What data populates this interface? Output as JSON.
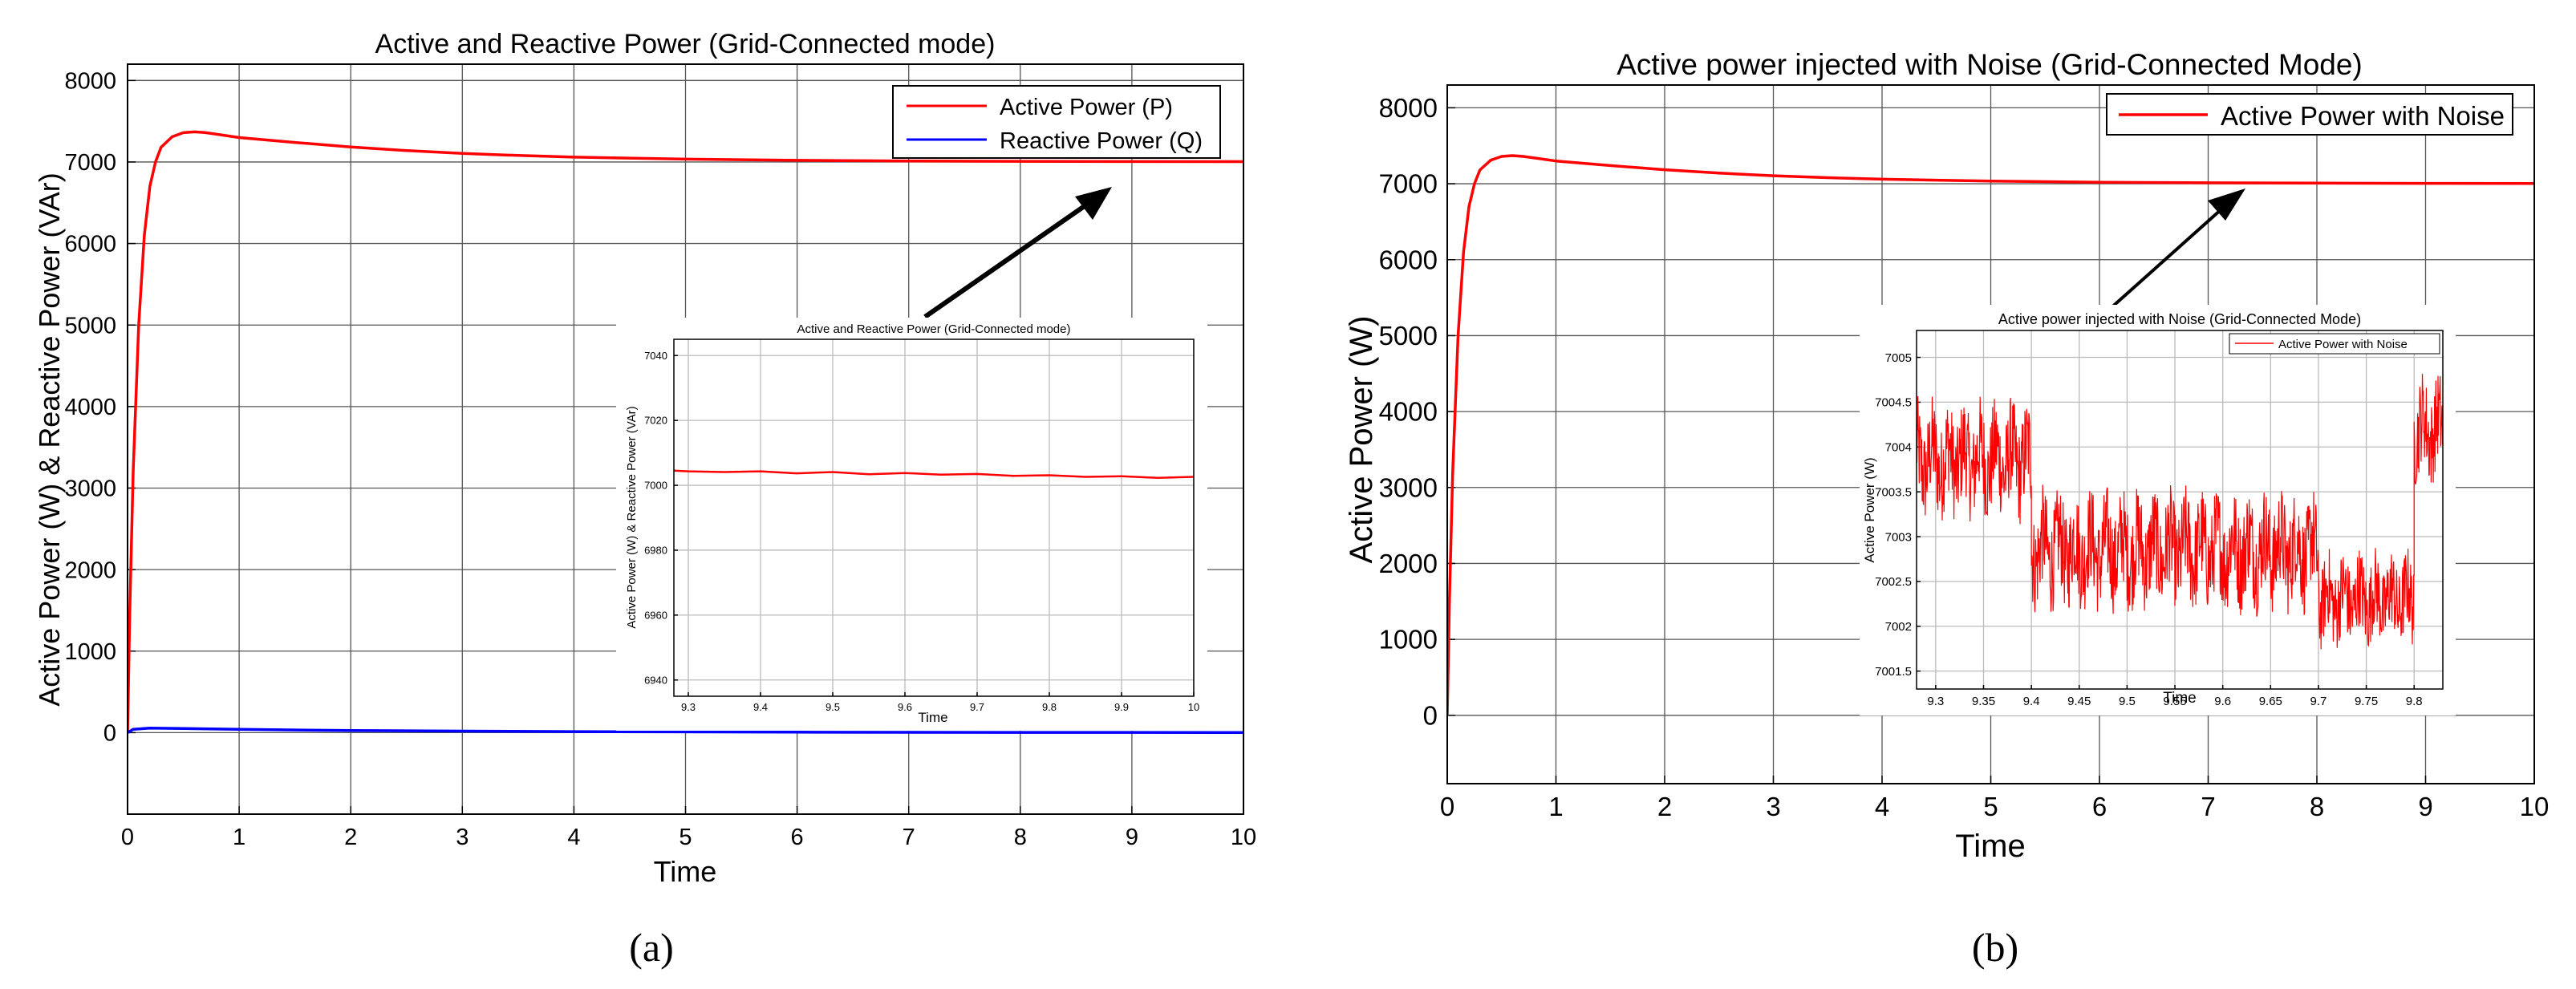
{
  "chart_data": [
    {
      "panel": "a",
      "type": "line",
      "title": "Active and Reactive Power (Grid-Connected mode)",
      "xlabel": "Time",
      "ylabel": "Active Power (W) & Reactive Power (VAr)",
      "xlim": [
        0,
        10
      ],
      "ylim": [
        -1000,
        8200
      ],
      "xticks": [
        "0",
        "1",
        "2",
        "3",
        "4",
        "5",
        "6",
        "7",
        "8",
        "9",
        "10"
      ],
      "yticks": [
        "0",
        "1000",
        "2000",
        "3000",
        "4000",
        "5000",
        "6000",
        "7000",
        "8000"
      ],
      "grid": true,
      "legend_position": "top-right",
      "caption": "(a)",
      "series": [
        {
          "name": "Active Power (P)",
          "color": "#ff0000",
          "x": [
            0,
            0.02,
            0.05,
            0.1,
            0.15,
            0.2,
            0.25,
            0.3,
            0.4,
            0.5,
            0.6,
            0.7,
            0.8,
            1,
            1.5,
            2,
            2.5,
            3,
            3.5,
            4,
            5,
            6,
            7,
            8,
            9,
            10
          ],
          "values": [
            0,
            1500,
            3200,
            5000,
            6100,
            6700,
            7000,
            7180,
            7310,
            7360,
            7370,
            7360,
            7340,
            7300,
            7240,
            7185,
            7140,
            7105,
            7080,
            7060,
            7035,
            7020,
            7012,
            7008,
            7005,
            7004
          ]
        },
        {
          "name": "Reactive Power (Q)",
          "color": "#0000ff",
          "x": [
            0,
            0.05,
            0.2,
            0.5,
            1,
            2,
            4,
            6,
            8,
            10
          ],
          "values": [
            0,
            40,
            55,
            50,
            40,
            25,
            12,
            6,
            3,
            2
          ]
        }
      ],
      "annotation": "arrow",
      "inset": {
        "title": "Active and Reactive Power (Grid-Connected mode)",
        "xlabel": "Time",
        "ylabel": "Active Power (W) & Reactive Power (VAr)",
        "xlim": [
          9.28,
          10
        ],
        "ylim": [
          6935,
          7045
        ],
        "xticks": [
          "9.3",
          "9.4",
          "9.5",
          "9.6",
          "9.7",
          "9.8",
          "9.9",
          "10"
        ],
        "yticks": [
          "6940",
          "6960",
          "6980",
          "7000",
          "7020",
          "7040"
        ],
        "series": [
          {
            "color": "#ff0000",
            "x": [
              9.28,
              9.3,
              9.35,
              9.4,
              9.45,
              9.5,
              9.55,
              9.6,
              9.65,
              9.7,
              9.75,
              9.8,
              9.85,
              9.9,
              9.95,
              10
            ],
            "values": [
              7004.5,
              7004.3,
              7004.1,
              7004.3,
              7003.7,
              7004.1,
              7003.4,
              7003.8,
              7003.3,
              7003.5,
              7002.9,
              7003.1,
              7002.6,
              7002.8,
              7002.3,
              7002.6
            ]
          }
        ]
      }
    },
    {
      "panel": "b",
      "type": "line",
      "title": "Active power injected with Noise (Grid-Connected Mode)",
      "xlabel": "Time",
      "ylabel": "Active Power (W)",
      "xlim": [
        0,
        10
      ],
      "ylim": [
        -900,
        8300
      ],
      "xticks": [
        "0",
        "1",
        "2",
        "3",
        "4",
        "5",
        "6",
        "7",
        "8",
        "9",
        "10"
      ],
      "yticks": [
        "0",
        "1000",
        "2000",
        "3000",
        "4000",
        "5000",
        "6000",
        "7000",
        "8000"
      ],
      "grid": true,
      "legend_position": "top-right",
      "caption": "(b)",
      "series": [
        {
          "name": "Active Power with Noise",
          "color": "#ff0000",
          "x": [
            0,
            0.02,
            0.05,
            0.1,
            0.15,
            0.2,
            0.25,
            0.3,
            0.4,
            0.5,
            0.6,
            0.7,
            0.8,
            1,
            1.5,
            2,
            2.5,
            3,
            3.5,
            4,
            5,
            6,
            7,
            8,
            9,
            10
          ],
          "values": [
            0,
            1500,
            3200,
            5000,
            6100,
            6700,
            7000,
            7180,
            7310,
            7360,
            7370,
            7360,
            7340,
            7300,
            7240,
            7185,
            7140,
            7105,
            7080,
            7060,
            7035,
            7020,
            7012,
            7008,
            7005,
            7004
          ]
        }
      ],
      "annotation": "arrow",
      "inset": {
        "title": "Active power injected with Noise (Grid-Connected Mode)",
        "xlabel": "Time",
        "ylabel": "Active Power (W)",
        "legend": "Active Power with Noise",
        "xlim": [
          9.28,
          9.83
        ],
        "ylim": [
          7001.3,
          7005.3
        ],
        "xticks": [
          "9.3",
          "9.35",
          "9.4",
          "9.45",
          "9.5",
          "9.55",
          "9.6",
          "9.65",
          "9.7",
          "9.75",
          "9.8"
        ],
        "yticks": [
          "7001.5",
          "7002",
          "7002.5",
          "7003",
          "7003.5",
          "7004",
          "7004.5",
          "7005"
        ],
        "series": [
          {
            "name": "Active Power with Noise",
            "color": "#ff0000",
            "segments": [
              {
                "x_start": 9.28,
                "x_end": 9.4,
                "level": 7003.85,
                "amplitude": 0.55
              },
              {
                "x_start": 9.4,
                "x_end": 9.7,
                "level": 7002.85,
                "amplitude": 0.55
              },
              {
                "x_start": 9.7,
                "x_end": 9.8,
                "level": 7002.3,
                "amplitude": 0.45
              },
              {
                "x_start": 9.8,
                "x_end": 9.83,
                "level": 7004.2,
                "amplitude": 0.5
              }
            ]
          }
        ]
      }
    }
  ]
}
